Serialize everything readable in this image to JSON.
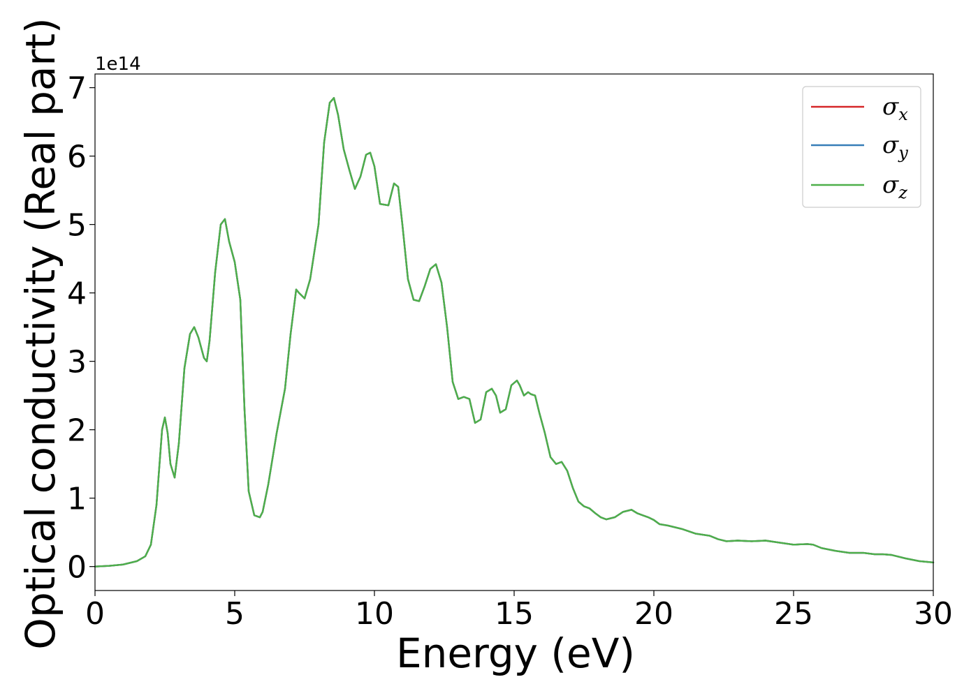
{
  "chart_data": {
    "type": "line",
    "xlabel": "Energy (eV)",
    "ylabel": "Optical conductivity (Real part)",
    "y_offset_text": "1e14",
    "y_multiplier": 100000000000000.0,
    "xlim": [
      0,
      30
    ],
    "ylim": [
      -0.35,
      7.2
    ],
    "x_ticks": [
      0,
      5,
      10,
      15,
      20,
      25,
      30
    ],
    "y_ticks": [
      0,
      1,
      2,
      3,
      4,
      5,
      6,
      7
    ],
    "grid": false,
    "legend_position": "top-right",
    "x": [
      0,
      0.5,
      1.0,
      1.5,
      1.8,
      2.0,
      2.2,
      2.4,
      2.5,
      2.6,
      2.7,
      2.85,
      3.0,
      3.2,
      3.4,
      3.55,
      3.7,
      3.9,
      4.0,
      4.1,
      4.3,
      4.5,
      4.65,
      4.8,
      5.0,
      5.2,
      5.35,
      5.5,
      5.7,
      5.9,
      6.0,
      6.2,
      6.5,
      6.8,
      7.0,
      7.2,
      7.3,
      7.5,
      7.7,
      8.0,
      8.2,
      8.4,
      8.55,
      8.7,
      8.9,
      9.1,
      9.3,
      9.5,
      9.7,
      9.85,
      10.0,
      10.2,
      10.5,
      10.7,
      10.85,
      11.0,
      11.2,
      11.4,
      11.6,
      11.8,
      12.0,
      12.2,
      12.4,
      12.6,
      12.8,
      13.0,
      13.2,
      13.4,
      13.6,
      13.8,
      14.0,
      14.2,
      14.35,
      14.5,
      14.7,
      14.9,
      15.1,
      15.2,
      15.35,
      15.5,
      15.6,
      15.75,
      15.9,
      16.1,
      16.3,
      16.5,
      16.7,
      16.9,
      17.1,
      17.3,
      17.5,
      17.7,
      17.9,
      18.1,
      18.3,
      18.6,
      18.9,
      19.2,
      19.4,
      19.6,
      19.8,
      20.0,
      20.2,
      20.5,
      21.0,
      21.5,
      22.0,
      22.3,
      22.6,
      23.0,
      23.5,
      24.0,
      24.5,
      25.0,
      25.5,
      25.7,
      26.0,
      26.5,
      27.0,
      27.5,
      27.9,
      28.2,
      28.5,
      29.0,
      29.5,
      30.0
    ],
    "series": [
      {
        "name": "σx",
        "color": "#d62728",
        "values": [
          0,
          0.01,
          0.03,
          0.08,
          0.15,
          0.32,
          0.9,
          2.0,
          2.18,
          1.95,
          1.5,
          1.3,
          1.8,
          2.9,
          3.4,
          3.5,
          3.35,
          3.05,
          3.0,
          3.3,
          4.3,
          5.0,
          5.08,
          4.75,
          4.45,
          3.9,
          2.3,
          1.1,
          0.75,
          0.72,
          0.8,
          1.2,
          1.95,
          2.6,
          3.4,
          4.05,
          4.0,
          3.92,
          4.2,
          5.0,
          6.2,
          6.78,
          6.85,
          6.6,
          6.1,
          5.8,
          5.52,
          5.7,
          6.02,
          6.05,
          5.85,
          5.3,
          5.28,
          5.6,
          5.55,
          5.0,
          4.2,
          3.9,
          3.88,
          4.1,
          4.35,
          4.42,
          4.15,
          3.5,
          2.7,
          2.45,
          2.48,
          2.45,
          2.1,
          2.15,
          2.55,
          2.6,
          2.5,
          2.25,
          2.3,
          2.65,
          2.72,
          2.65,
          2.5,
          2.55,
          2.52,
          2.5,
          2.25,
          1.95,
          1.6,
          1.5,
          1.53,
          1.4,
          1.15,
          0.95,
          0.88,
          0.85,
          0.78,
          0.72,
          0.69,
          0.72,
          0.8,
          0.83,
          0.78,
          0.75,
          0.72,
          0.68,
          0.62,
          0.6,
          0.55,
          0.48,
          0.45,
          0.4,
          0.37,
          0.38,
          0.37,
          0.38,
          0.35,
          0.32,
          0.33,
          0.32,
          0.27,
          0.23,
          0.2,
          0.2,
          0.18,
          0.18,
          0.17,
          0.12,
          0.08,
          0.06
        ]
      },
      {
        "name": "σy",
        "color": "#377eb8",
        "values": [
          0,
          0.01,
          0.03,
          0.08,
          0.15,
          0.32,
          0.9,
          2.0,
          2.18,
          1.95,
          1.5,
          1.3,
          1.8,
          2.9,
          3.4,
          3.5,
          3.35,
          3.05,
          3.0,
          3.3,
          4.3,
          5.0,
          5.08,
          4.75,
          4.45,
          3.9,
          2.3,
          1.1,
          0.75,
          0.72,
          0.8,
          1.2,
          1.95,
          2.6,
          3.4,
          4.05,
          4.0,
          3.92,
          4.2,
          5.0,
          6.2,
          6.78,
          6.85,
          6.6,
          6.1,
          5.8,
          5.52,
          5.7,
          6.02,
          6.05,
          5.85,
          5.3,
          5.28,
          5.6,
          5.55,
          5.0,
          4.2,
          3.9,
          3.88,
          4.1,
          4.35,
          4.42,
          4.15,
          3.5,
          2.7,
          2.45,
          2.48,
          2.45,
          2.1,
          2.15,
          2.55,
          2.6,
          2.5,
          2.25,
          2.3,
          2.65,
          2.72,
          2.65,
          2.5,
          2.55,
          2.52,
          2.5,
          2.25,
          1.95,
          1.6,
          1.5,
          1.53,
          1.4,
          1.15,
          0.95,
          0.88,
          0.85,
          0.78,
          0.72,
          0.69,
          0.72,
          0.8,
          0.83,
          0.78,
          0.75,
          0.72,
          0.68,
          0.62,
          0.6,
          0.55,
          0.48,
          0.45,
          0.4,
          0.37,
          0.38,
          0.37,
          0.38,
          0.35,
          0.32,
          0.33,
          0.32,
          0.27,
          0.23,
          0.2,
          0.2,
          0.18,
          0.18,
          0.17,
          0.12,
          0.08,
          0.06
        ]
      },
      {
        "name": "σz",
        "color": "#4daf4a",
        "values": [
          0,
          0.01,
          0.03,
          0.08,
          0.15,
          0.32,
          0.9,
          2.0,
          2.18,
          1.95,
          1.5,
          1.3,
          1.8,
          2.9,
          3.4,
          3.5,
          3.35,
          3.05,
          3.0,
          3.3,
          4.3,
          5.0,
          5.08,
          4.75,
          4.45,
          3.9,
          2.3,
          1.1,
          0.75,
          0.72,
          0.8,
          1.2,
          1.95,
          2.6,
          3.4,
          4.05,
          4.0,
          3.92,
          4.2,
          5.0,
          6.2,
          6.78,
          6.85,
          6.6,
          6.1,
          5.8,
          5.52,
          5.7,
          6.02,
          6.05,
          5.85,
          5.3,
          5.28,
          5.6,
          5.55,
          5.0,
          4.2,
          3.9,
          3.88,
          4.1,
          4.35,
          4.42,
          4.15,
          3.5,
          2.7,
          2.45,
          2.48,
          2.45,
          2.1,
          2.15,
          2.55,
          2.6,
          2.5,
          2.25,
          2.3,
          2.65,
          2.72,
          2.65,
          2.5,
          2.55,
          2.52,
          2.5,
          2.25,
          1.95,
          1.6,
          1.5,
          1.53,
          1.4,
          1.15,
          0.95,
          0.88,
          0.85,
          0.78,
          0.72,
          0.69,
          0.72,
          0.8,
          0.83,
          0.78,
          0.75,
          0.72,
          0.68,
          0.62,
          0.6,
          0.55,
          0.48,
          0.45,
          0.4,
          0.37,
          0.38,
          0.37,
          0.38,
          0.35,
          0.32,
          0.33,
          0.32,
          0.27,
          0.23,
          0.2,
          0.2,
          0.18,
          0.18,
          0.17,
          0.12,
          0.08,
          0.06
        ]
      }
    ],
    "legend": [
      {
        "symbol": "σ",
        "sub": "x",
        "color": "#d62728"
      },
      {
        "symbol": "σ",
        "sub": "y",
        "color": "#377eb8"
      },
      {
        "symbol": "σ",
        "sub": "z",
        "color": "#4daf4a"
      }
    ]
  }
}
